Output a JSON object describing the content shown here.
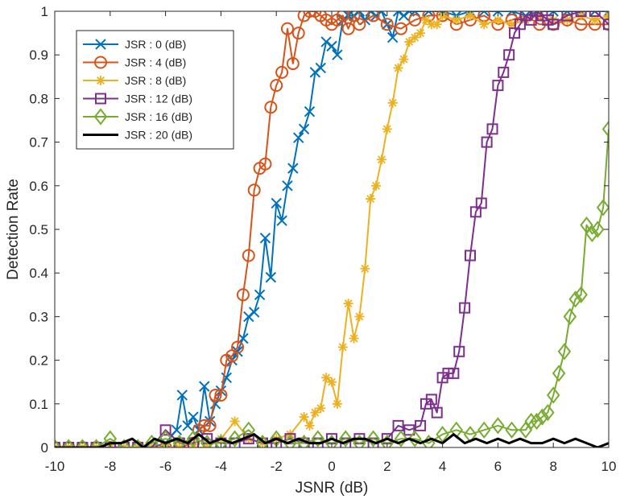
{
  "chart_data": {
    "type": "line",
    "title": "",
    "xlabel": "JSNR (dB)",
    "ylabel": "Detection Rate",
    "xlim": [
      -10,
      10
    ],
    "ylim": [
      0,
      1
    ],
    "xticks": [
      "-10",
      "-8",
      "-6",
      "-4",
      "-2",
      "0",
      "2",
      "4",
      "6",
      "8",
      "10"
    ],
    "yticks": [
      "0",
      "0.1",
      "0.2",
      "0.3",
      "0.4",
      "0.5",
      "0.6",
      "0.7",
      "0.8",
      "0.9",
      "1"
    ],
    "grid": false,
    "legend_position": "top-left",
    "series": [
      {
        "name": "JSR : 0 (dB)",
        "color": "#0072BD",
        "marker": "x",
        "x": [
          -10,
          -9.5,
          -9,
          -8.5,
          -8,
          -7.5,
          -7,
          -6.5,
          -6,
          -5.6,
          -5.4,
          -5.2,
          -5,
          -4.8,
          -4.6,
          -4.4,
          -4.2,
          -4,
          -3.8,
          -3.6,
          -3.4,
          -3.2,
          -3,
          -2.8,
          -2.6,
          -2.4,
          -2.2,
          -2,
          -1.8,
          -1.6,
          -1.4,
          -1.2,
          -1,
          -0.8,
          -0.6,
          -0.4,
          -0.2,
          0,
          0.2,
          0.4,
          0.6,
          0.8,
          1,
          1.2,
          1.4,
          1.6,
          1.8,
          2,
          2.2,
          2.4,
          2.6,
          2.8,
          3,
          3.5,
          4,
          4.5,
          5,
          5.5,
          6,
          6.5,
          7,
          7.5,
          8,
          8.5,
          9,
          9.5,
          10
        ],
        "y": [
          0,
          0,
          0,
          0,
          0,
          0,
          0,
          0,
          0.01,
          0.04,
          0.12,
          0.05,
          0.07,
          0.04,
          0.14,
          0.06,
          0.1,
          0.13,
          0.16,
          0.2,
          0.22,
          0.25,
          0.3,
          0.31,
          0.35,
          0.48,
          0.39,
          0.56,
          0.52,
          0.6,
          0.64,
          0.71,
          0.73,
          0.77,
          0.86,
          0.87,
          0.93,
          0.92,
          0.9,
          0.98,
          0.99,
          0.99,
          1,
          0.98,
          1,
          0.99,
          1,
          0.97,
          0.94,
          1,
          0.99,
          1,
          1,
          1,
          1,
          0.99,
          1,
          1,
          1,
          1,
          0.99,
          1,
          1,
          1,
          1,
          1,
          1
        ]
      },
      {
        "name": "JSR : 4 (dB)",
        "color": "#D95319",
        "marker": "o",
        "x": [
          -10,
          -9.5,
          -9,
          -8.5,
          -8,
          -7.5,
          -7,
          -6.5,
          -6,
          -5.5,
          -5,
          -4.8,
          -4.6,
          -4.4,
          -4.2,
          -4,
          -3.8,
          -3.6,
          -3.4,
          -3.2,
          -3,
          -2.8,
          -2.6,
          -2.4,
          -2.2,
          -2,
          -1.8,
          -1.6,
          -1.4,
          -1.2,
          -1,
          -0.8,
          -0.6,
          -0.4,
          -0.2,
          0,
          0.2,
          0.4,
          0.6,
          0.8,
          1,
          1.5,
          2,
          2.5,
          3,
          3.5,
          4,
          4.5,
          5,
          5.5,
          6,
          6.5,
          7,
          7.5,
          8,
          8.5,
          9,
          9.5,
          10
        ],
        "y": [
          0,
          0,
          0,
          0,
          0,
          0,
          0,
          0,
          0,
          0,
          0.01,
          0.04,
          0.05,
          0.05,
          0.12,
          0.12,
          0.2,
          0.21,
          0.23,
          0.35,
          0.44,
          0.59,
          0.64,
          0.65,
          0.78,
          0.83,
          0.86,
          0.96,
          0.88,
          0.95,
          0.99,
          1,
          1,
          0.99,
          0.98,
          0.97,
          0.98,
          0.99,
          0.96,
          0.99,
          0.97,
          0.99,
          0.97,
          0.96,
          0.98,
          0.99,
          0.99,
          0.97,
          0.98,
          0.99,
          0.97,
          0.98,
          0.99,
          0.97,
          0.97,
          0.98,
          0.97,
          0.97,
          0.97
        ]
      },
      {
        "name": "JSR : 8 (dB)",
        "color": "#EDB120",
        "marker": "*",
        "x": [
          -10,
          -9.5,
          -9,
          -8.5,
          -8,
          -7.5,
          -7,
          -6.5,
          -6,
          -5.5,
          -5,
          -4.5,
          -4,
          -3.5,
          -3,
          -2.5,
          -2,
          -1.5,
          -1,
          -0.8,
          -0.6,
          -0.4,
          -0.2,
          0,
          0.2,
          0.4,
          0.6,
          0.8,
          1,
          1.2,
          1.4,
          1.6,
          1.8,
          2,
          2.2,
          2.4,
          2.6,
          2.8,
          3,
          3.2,
          3.4,
          3.6,
          3.8,
          4,
          4.5,
          5,
          5.5,
          6,
          6.5,
          7,
          7.5,
          8,
          8.5,
          9,
          9.5,
          10
        ],
        "y": [
          0,
          0,
          0,
          0,
          0,
          0,
          0,
          0,
          0,
          0,
          0,
          0,
          0.02,
          0.06,
          0.02,
          0.01,
          0.02,
          0.03,
          0.07,
          0.05,
          0.08,
          0.09,
          0.16,
          0.15,
          0.1,
          0.23,
          0.33,
          0.25,
          0.3,
          0.41,
          0.57,
          0.6,
          0.66,
          0.73,
          0.79,
          0.87,
          0.89,
          0.93,
          0.94,
          0.95,
          0.98,
          0.97,
          0.97,
          0.99,
          0.98,
          0.99,
          0.97,
          0.98,
          0.97,
          0.98,
          0.99,
          0.98,
          0.98,
          0.99,
          0.98,
          0.99
        ]
      },
      {
        "name": "JSR : 12 (dB)",
        "color": "#7E2F8E",
        "marker": "s",
        "x": [
          -10,
          -9.5,
          -9,
          -8.5,
          -8,
          -7.5,
          -7,
          -6.5,
          -6,
          -5.5,
          -5,
          -4.5,
          -4,
          -3.5,
          -3,
          -2.5,
          -2,
          -1.5,
          -1,
          -0.5,
          0,
          0.5,
          1,
          1.5,
          2,
          2.4,
          2.8,
          3.2,
          3.4,
          3.6,
          3.8,
          4,
          4.2,
          4.4,
          4.6,
          4.8,
          5,
          5.2,
          5.4,
          5.6,
          5.8,
          6,
          6.2,
          6.4,
          6.6,
          6.8,
          7,
          7.2,
          7.4,
          7.6,
          7.8,
          8,
          8.5,
          9,
          9.5,
          10
        ],
        "y": [
          0,
          0,
          0,
          0,
          0,
          0,
          0,
          0,
          0.04,
          0.01,
          0.01,
          0.02,
          0.01,
          0.01,
          0.02,
          0.01,
          0.01,
          0.02,
          0.01,
          0.01,
          0.02,
          0.01,
          0.02,
          0.01,
          0.02,
          0.05,
          0.04,
          0.05,
          0.1,
          0.11,
          0.08,
          0.16,
          0.17,
          0.17,
          0.22,
          0.32,
          0.44,
          0.54,
          0.56,
          0.7,
          0.73,
          0.83,
          0.86,
          0.9,
          0.95,
          0.97,
          0.99,
          0.98,
          1,
          0.99,
          0.98,
          0.97,
          0.99,
          1,
          1,
          0.97
        ]
      },
      {
        "name": "JSR : 16 (dB)",
        "color": "#77AC30",
        "marker": "d",
        "x": [
          -10,
          -9.5,
          -9,
          -8.5,
          -8,
          -7.5,
          -7,
          -6.5,
          -6,
          -5.5,
          -5,
          -4.5,
          -4,
          -3.5,
          -3,
          -2.5,
          -2,
          -1.5,
          -1,
          -0.5,
          0,
          0.5,
          1,
          1.5,
          2,
          2.5,
          3,
          3.5,
          4,
          4.5,
          5,
          5.5,
          6,
          6.5,
          7,
          7.2,
          7.4,
          7.6,
          7.8,
          8,
          8.2,
          8.4,
          8.6,
          8.8,
          9,
          9.2,
          9.4,
          9.6,
          9.8,
          10
        ],
        "y": [
          0,
          0,
          0,
          0,
          0.02,
          0,
          0,
          0.01,
          0.02,
          0.01,
          0.02,
          0.01,
          0.01,
          0.02,
          0.04,
          0.01,
          0.02,
          0.01,
          0.01,
          0.02,
          0.01,
          0.02,
          0.01,
          0.02,
          0.01,
          0.02,
          0.02,
          0.01,
          0.03,
          0.04,
          0.03,
          0.04,
          0.05,
          0.04,
          0.04,
          0.06,
          0.06,
          0.07,
          0.08,
          0.12,
          0.17,
          0.22,
          0.3,
          0.34,
          0.35,
          0.51,
          0.49,
          0.5,
          0.55,
          0.73
        ]
      },
      {
        "name": "JSR : 20 (dB)",
        "color": "#000000",
        "marker": "none",
        "x": [
          -10,
          -9.6,
          -9.2,
          -8.8,
          -8.4,
          -8,
          -7.6,
          -7.2,
          -6.8,
          -6.4,
          -6,
          -5.6,
          -5.2,
          -4.8,
          -4.4,
          -4,
          -3.6,
          -3.2,
          -2.8,
          -2.4,
          -2,
          -1.6,
          -1.2,
          -0.8,
          -0.4,
          0,
          0.4,
          0.8,
          1.2,
          1.6,
          2,
          2.4,
          2.8,
          3.2,
          3.6,
          4,
          4.4,
          4.8,
          5.2,
          5.6,
          6,
          6.4,
          6.8,
          7.2,
          7.6,
          8,
          8.4,
          8.8,
          9.2,
          9.6,
          10
        ],
        "y": [
          0,
          0,
          0,
          0,
          0,
          0.01,
          0.01,
          0.02,
          0,
          0.02,
          0.01,
          0.02,
          0.01,
          0.03,
          0.01,
          0.02,
          0.01,
          0.02,
          0.03,
          0.01,
          0.02,
          0.01,
          0.02,
          0.01,
          0.01,
          0.02,
          0.01,
          0.02,
          0.02,
          0.01,
          0.02,
          0.01,
          0.02,
          0.01,
          0.02,
          0.01,
          0.03,
          0.01,
          0.02,
          0.01,
          0.02,
          0.01,
          0.02,
          0.01,
          0.01,
          0.02,
          0.01,
          0.02,
          0.01,
          0.0,
          0.01
        ]
      }
    ]
  }
}
